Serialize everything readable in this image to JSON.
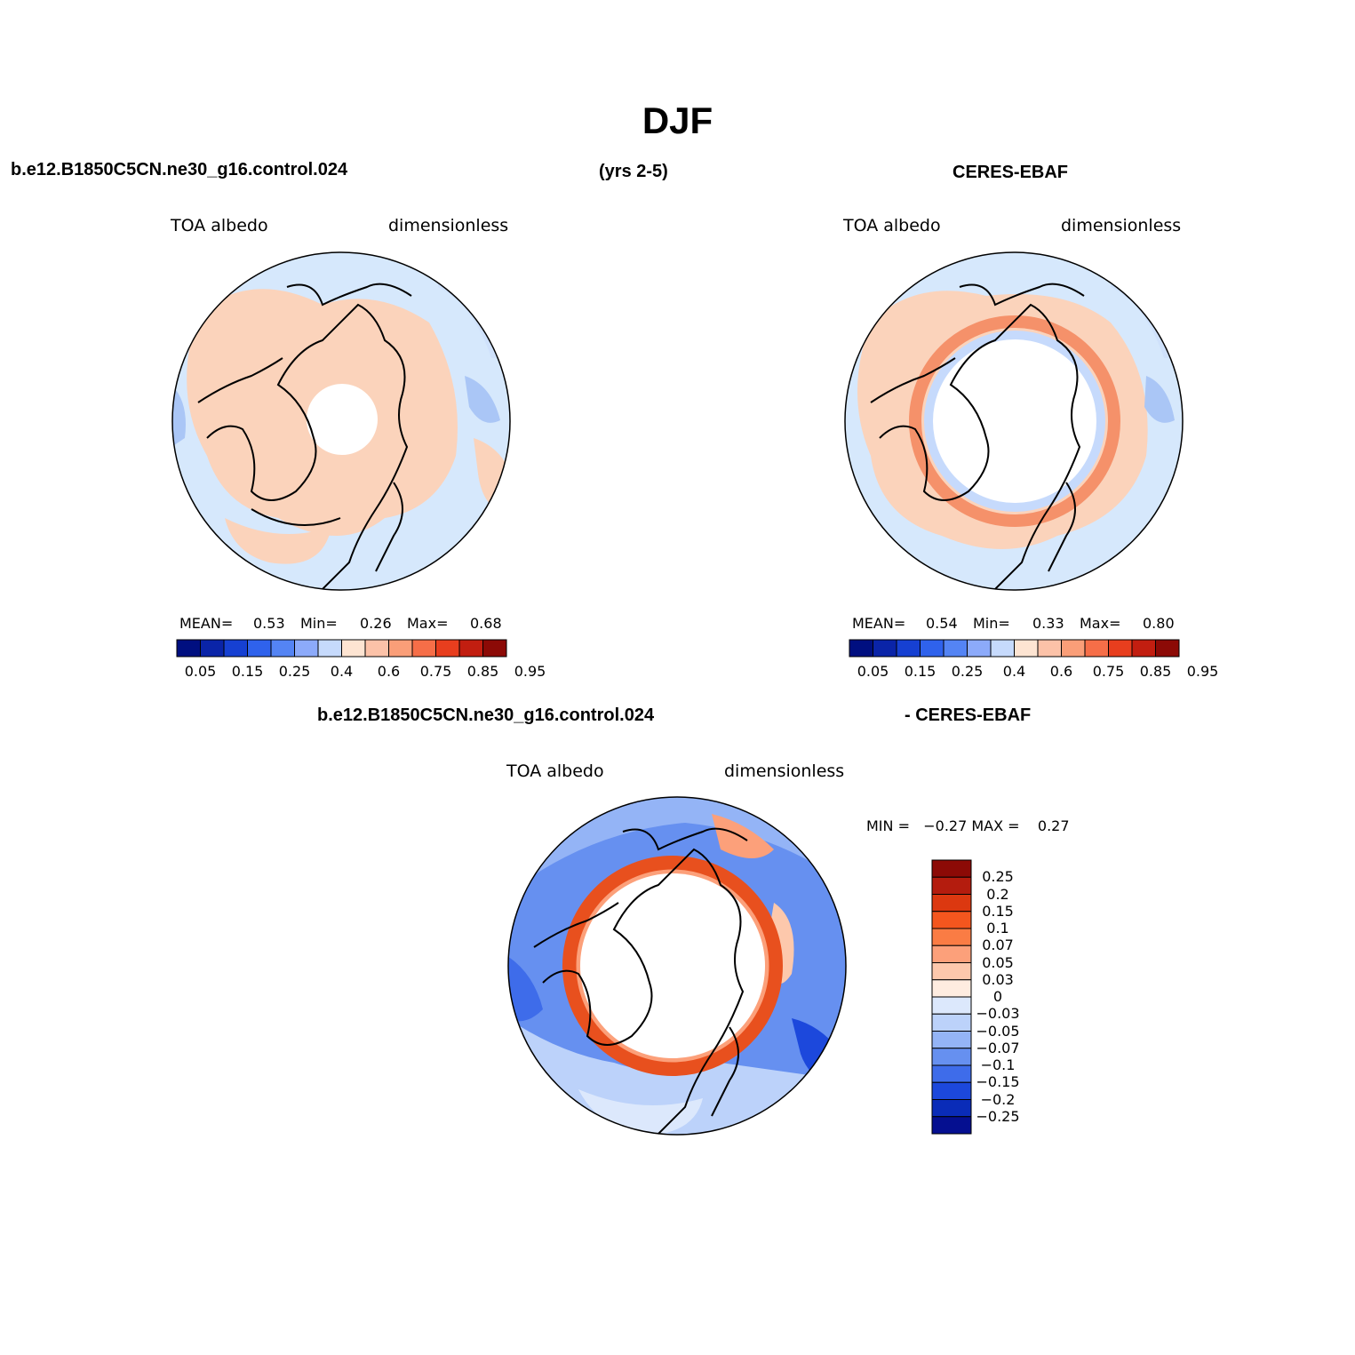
{
  "title": "DJF",
  "case_name_top": "b.e12.B1850C5CN.ne30_g16.control.024",
  "years": "(yrs 2-5)",
  "obs_name_top": "CERES-EBAF",
  "case_name_bottom": "b.e12.B1850C5CN.ne30_g16.control.024",
  "obs_name_bottom": "- CERES-EBAF",
  "panels": [
    {
      "variable": "TOA  albedo",
      "units": "dimensionless",
      "mean_label": "MEAN=",
      "mean": "0.53",
      "min_label": "Min=",
      "min": "0.26",
      "max_label": "Max=",
      "max": "0.68"
    },
    {
      "variable": "TOA  albedo",
      "units": "dimensionless",
      "mean_label": "MEAN=",
      "mean": "0.54",
      "min_label": "Min=",
      "min": "0.33",
      "max_label": "Max=",
      "max": "0.80"
    }
  ],
  "diff_panel": {
    "variable": "TOA  albedo",
    "units": "dimensionless",
    "minmax_text": "MIN =   −0.27 MAX =    0.27"
  },
  "abs_colorbar": {
    "colors": [
      "#000f80",
      "#0a24a8",
      "#1640d2",
      "#2f62ec",
      "#5484f4",
      "#8caafa",
      "#c6dafc",
      "#fde4d2",
      "#fcc2a8",
      "#fa9e78",
      "#f66e48",
      "#e83e1e",
      "#c21e10",
      "#8c0a06"
    ],
    "tick_labels": [
      "0.05",
      "0.15",
      "0.25",
      "0.4",
      "0.6",
      "0.75",
      "0.85",
      "0.95"
    ]
  },
  "diff_colorbar": {
    "colors": [
      "#8c0a06",
      "#b41c0e",
      "#dc3810",
      "#f4561e",
      "#fa7c44",
      "#fca07a",
      "#fdc8ac",
      "#feece0",
      "#dce8fc",
      "#bcd2fa",
      "#94b4f6",
      "#6690f0",
      "#3e6cea",
      "#1c48dc",
      "#0a2cb8",
      "#050f90"
    ],
    "tick_labels": [
      "0.25",
      "0.2",
      "0.15",
      "0.1",
      "0.07",
      "0.05",
      "0.03",
      "0",
      "−0.03",
      "−0.05",
      "−0.07",
      "−0.1",
      "−0.15",
      "−0.2",
      "−0.25"
    ]
  }
}
